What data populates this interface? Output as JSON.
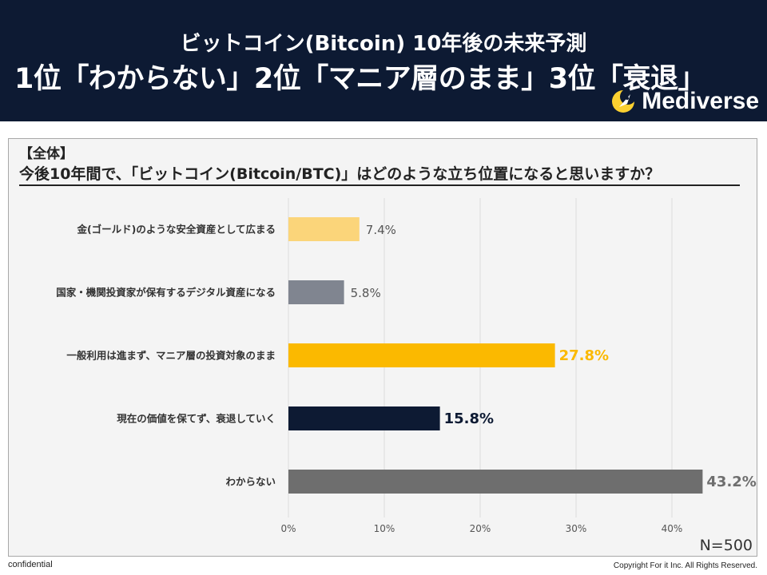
{
  "header": {
    "subtitle": "ビットコイン(Bitcoin) 10年後の未来予測",
    "title": "1位「わからない」2位「マニア層のまま」3位「衰退」",
    "brand": "Mediverse",
    "brand_icon": "rocket-moon-icon"
  },
  "section_label": "【全体】",
  "question": "今後10年間で、「ビットコイン(Bitcoin/BTC)」はどのような立ち位置になると思いますか？",
  "sample_size": "N=500",
  "footer": {
    "left": "confidential",
    "right": "Copyright For it Inc. All Rights Reserved."
  },
  "colors": {
    "header_bg": "#0d1a33",
    "gold": "#fbd57a",
    "gray": "#808590",
    "orange": "#fbb900",
    "navy": "#0d1a33",
    "darkgray": "#6e6e6e"
  },
  "chart_data": {
    "type": "bar",
    "orientation": "horizontal",
    "categories": [
      "金(ゴールド)のような安全資産として広まる",
      "国家・機関投資家が保有するデジタル資産になる",
      "一般利用は進まず、マニア層の投資対象のまま",
      "現在の価値を保てず、衰退していく",
      "わからない"
    ],
    "values": [
      7.4,
      5.8,
      27.8,
      15.8,
      43.2
    ],
    "value_labels": [
      "7.4%",
      "5.8%",
      "27.8%",
      "15.8%",
      "43.2%"
    ],
    "bar_colors": [
      "#fbd57a",
      "#808590",
      "#fbb900",
      "#0d1a33",
      "#6e6e6e"
    ],
    "label_colors": [
      "#555555",
      "#555555",
      "#fbb900",
      "#0d1a33",
      "#6e6e6e"
    ],
    "label_bold": [
      false,
      false,
      true,
      true,
      true
    ],
    "xlim": [
      0,
      45
    ],
    "xticks": [
      0,
      10,
      20,
      30,
      40
    ],
    "xtick_labels": [
      "0%",
      "10%",
      "20%",
      "30%",
      "40%"
    ],
    "grid": true
  }
}
